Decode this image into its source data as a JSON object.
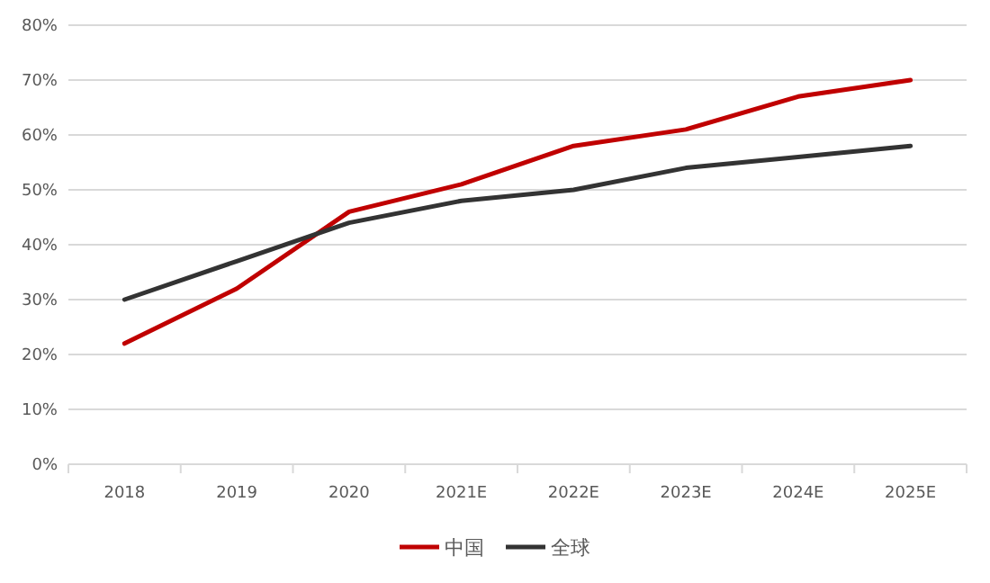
{
  "chart_data": {
    "type": "line",
    "categories": [
      "2018",
      "2019",
      "2020",
      "2021E",
      "2022E",
      "2023E",
      "2024E",
      "2025E"
    ],
    "series": [
      {
        "name": "中国",
        "color": "#c00000",
        "values": [
          22,
          32,
          46,
          51,
          58,
          61,
          67,
          70
        ]
      },
      {
        "name": "全球",
        "color": "#333333",
        "values": [
          30,
          37,
          44,
          48,
          50,
          54,
          56,
          58
        ]
      }
    ],
    "ylim": [
      0,
      80
    ],
    "yticks": [
      {
        "value": 0,
        "label": "0%"
      },
      {
        "value": 10,
        "label": "10%"
      },
      {
        "value": 20,
        "label": "20%"
      },
      {
        "value": 30,
        "label": "30%"
      },
      {
        "value": 40,
        "label": "40%"
      },
      {
        "value": 50,
        "label": "50%"
      },
      {
        "value": 60,
        "label": "60%"
      },
      {
        "value": 70,
        "label": "70%"
      },
      {
        "value": 80,
        "label": "80%"
      }
    ],
    "grid": "y",
    "legend": "bottom",
    "marker": "none",
    "line_style": "solid"
  }
}
